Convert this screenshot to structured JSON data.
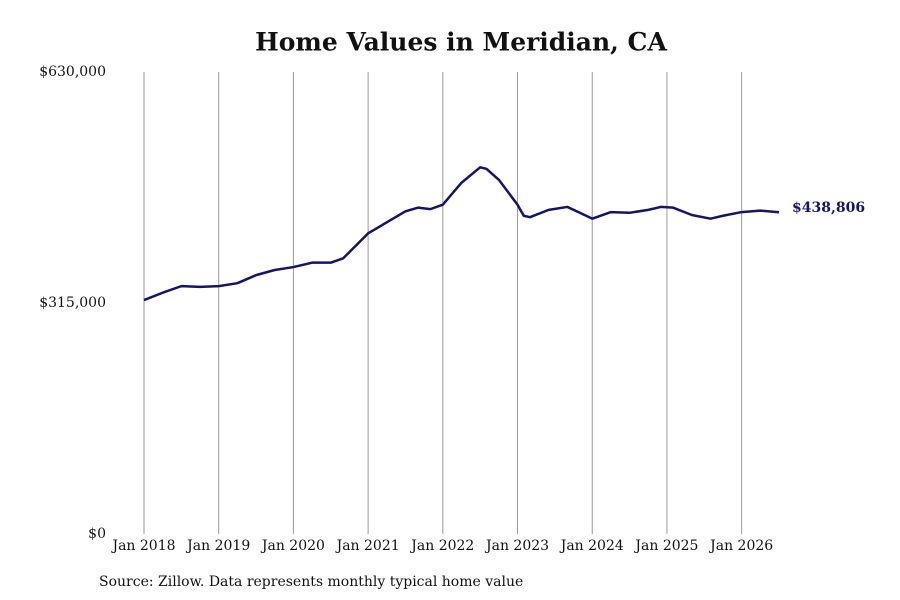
{
  "chart_data": {
    "type": "line",
    "title": "Home Values in Meridian, CA",
    "source": "Source: Zillow. Data represents monthly typical home value",
    "x": [
      "2018-01",
      "2018-04",
      "2018-07",
      "2018-10",
      "2019-01",
      "2019-04",
      "2019-07",
      "2019-10",
      "2020-01",
      "2020-04",
      "2020-07",
      "2020-09",
      "2021-01",
      "2021-04",
      "2021-07",
      "2021-09",
      "2021-11",
      "2022-01",
      "2022-04",
      "2022-07",
      "2022-08",
      "2022-10",
      "2023-01",
      "2023-02",
      "2023-03",
      "2023-06",
      "2023-09",
      "2023-11",
      "2024-01",
      "2024-04",
      "2024-07",
      "2024-10",
      "2024-12",
      "2025-02",
      "2025-05",
      "2025-08",
      "2025-10",
      "2026-01",
      "2026-04",
      "2026-07"
    ],
    "series": [
      {
        "name": "Typical home value",
        "color": "#14146b",
        "values": [
          319000,
          329000,
          338000,
          337000,
          338000,
          342000,
          353000,
          360000,
          364000,
          370000,
          370000,
          376000,
          410000,
          425000,
          440000,
          445000,
          443000,
          449000,
          479000,
          500000,
          498000,
          483000,
          449000,
          434000,
          432000,
          442000,
          446000,
          438000,
          430000,
          439000,
          438000,
          442000,
          446000,
          445000,
          435000,
          430000,
          434000,
          439000,
          441000,
          438806
        ],
        "value_labels": [
          null,
          null,
          null,
          null,
          null,
          null,
          null,
          null,
          null,
          null,
          null,
          null,
          null,
          null,
          null,
          null,
          null,
          null,
          null,
          null,
          null,
          null,
          null,
          null,
          null,
          null,
          null,
          null,
          null,
          null,
          null,
          null,
          null,
          null,
          null,
          null,
          null,
          null,
          null,
          "$438,806"
        ]
      }
    ],
    "xlim": [
      "2018-01",
      "2026-07"
    ],
    "xticks": [
      {
        "value": "2018-01",
        "label": "Jan 2018"
      },
      {
        "value": "2019-01",
        "label": "Jan 2019"
      },
      {
        "value": "2020-01",
        "label": "Jan 2020"
      },
      {
        "value": "2021-01",
        "label": "Jan 2021"
      },
      {
        "value": "2022-01",
        "label": "Jan 2022"
      },
      {
        "value": "2023-01",
        "label": "Jan 2023"
      },
      {
        "value": "2024-01",
        "label": "Jan 2024"
      },
      {
        "value": "2025-01",
        "label": "Jan 2025"
      },
      {
        "value": "2026-01",
        "label": "Jan 2026"
      }
    ],
    "ylim": [
      0,
      630000
    ],
    "yticks": [
      {
        "value": 0,
        "label": "$0"
      },
      {
        "value": 315000,
        "label": "$315,000"
      },
      {
        "value": 630000,
        "label": "$630,000"
      }
    ],
    "grid": "x"
  }
}
